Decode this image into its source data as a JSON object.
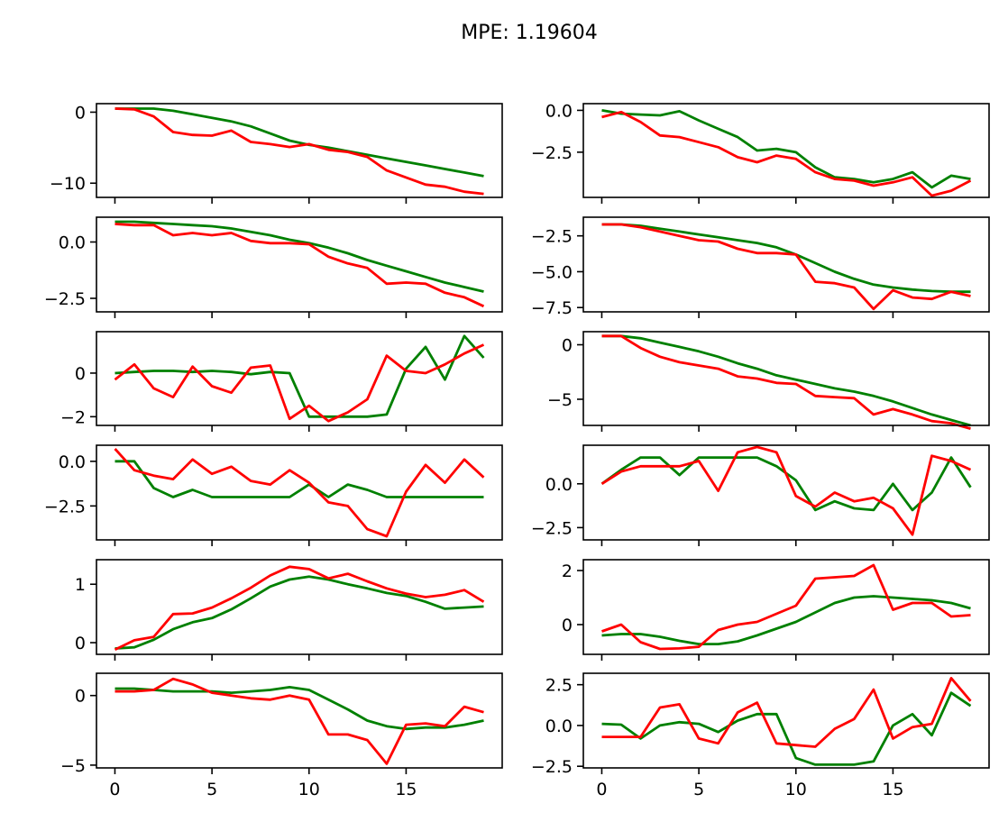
{
  "title": "MPE: 1.19604",
  "colors": {
    "series_green": "#008000",
    "series_red": "#ff0000",
    "axes": "#000000"
  },
  "chart_data": [
    {
      "type": "line",
      "subplot": "row 1, col 1",
      "x": [
        0,
        1,
        2,
        3,
        4,
        5,
        6,
        7,
        8,
        9,
        10,
        11,
        12,
        13,
        14,
        15,
        16,
        17,
        18,
        19
      ],
      "ylim": [
        -12,
        1.2
      ],
      "yticks": [
        0,
        -10
      ],
      "xticks": [
        0,
        5,
        10,
        15
      ],
      "series": [
        {
          "color": "green",
          "values": [
            0.5,
            0.5,
            0.5,
            0.2,
            -0.3,
            -0.8,
            -1.3,
            -2.0,
            -3.0,
            -4.0,
            -4.6,
            -5.0,
            -5.5,
            -6.0,
            -6.5,
            -7.0,
            -7.5,
            -8.0,
            -8.5,
            -9.0
          ]
        },
        {
          "color": "red",
          "values": [
            0.5,
            0.4,
            -0.6,
            -2.8,
            -3.2,
            -3.3,
            -2.6,
            -4.2,
            -4.5,
            -4.9,
            -4.5,
            -5.3,
            -5.6,
            -6.3,
            -8.2,
            -9.2,
            -10.2,
            -10.5,
            -11.2,
            -11.5
          ]
        }
      ]
    },
    {
      "type": "line",
      "subplot": "row 1, col 2",
      "x": [
        0,
        1,
        2,
        3,
        4,
        5,
        6,
        7,
        8,
        9,
        10,
        11,
        12,
        13,
        14,
        15,
        16,
        17,
        18,
        19
      ],
      "ylim": [
        -5.2,
        0.4
      ],
      "yticks": [
        0.0,
        -2.5
      ],
      "xticks": [
        0,
        5,
        10,
        15
      ],
      "series": [
        {
          "color": "green",
          "values": [
            0.0,
            -0.2,
            -0.25,
            -0.3,
            -0.05,
            -0.6,
            -1.1,
            -1.6,
            -2.4,
            -2.3,
            -2.5,
            -3.4,
            -4.0,
            -4.1,
            -4.3,
            -4.1,
            -3.7,
            -4.6,
            -3.9,
            -4.1
          ]
        },
        {
          "color": "red",
          "values": [
            -0.4,
            -0.1,
            -0.7,
            -1.5,
            -1.6,
            -1.9,
            -2.2,
            -2.8,
            -3.1,
            -2.7,
            -2.9,
            -3.7,
            -4.1,
            -4.2,
            -4.5,
            -4.3,
            -4.0,
            -5.1,
            -4.8,
            -4.2
          ]
        }
      ]
    },
    {
      "type": "line",
      "subplot": "row 2, col 1",
      "x": [
        0,
        1,
        2,
        3,
        4,
        5,
        6,
        7,
        8,
        9,
        10,
        11,
        12,
        13,
        14,
        15,
        16,
        17,
        18,
        19
      ],
      "ylim": [
        -3.1,
        1.1
      ],
      "yticks": [
        0.0,
        -2.5
      ],
      "xticks": [
        0,
        5,
        10,
        15
      ],
      "series": [
        {
          "color": "green",
          "values": [
            0.9,
            0.9,
            0.85,
            0.8,
            0.75,
            0.7,
            0.6,
            0.45,
            0.3,
            0.1,
            -0.05,
            -0.25,
            -0.5,
            -0.8,
            -1.05,
            -1.3,
            -1.55,
            -1.8,
            -2.0,
            -2.2
          ]
        },
        {
          "color": "red",
          "values": [
            0.8,
            0.75,
            0.75,
            0.3,
            0.4,
            0.3,
            0.4,
            0.05,
            -0.05,
            -0.05,
            -0.1,
            -0.65,
            -0.95,
            -1.15,
            -1.85,
            -1.8,
            -1.85,
            -2.25,
            -2.45,
            -2.85
          ]
        }
      ]
    },
    {
      "type": "line",
      "subplot": "row 2, col 2",
      "x": [
        0,
        1,
        2,
        3,
        4,
        5,
        6,
        7,
        8,
        9,
        10,
        11,
        12,
        13,
        14,
        15,
        16,
        17,
        18,
        19
      ],
      "ylim": [
        -7.8,
        -1.2
      ],
      "yticks": [
        -2.5,
        -5.0,
        -7.5
      ],
      "xticks": [
        0,
        5,
        10,
        15
      ],
      "series": [
        {
          "color": "green",
          "values": [
            -1.7,
            -1.7,
            -1.8,
            -2.0,
            -2.2,
            -2.4,
            -2.6,
            -2.8,
            -3.0,
            -3.3,
            -3.8,
            -4.4,
            -5.0,
            -5.5,
            -5.9,
            -6.1,
            -6.25,
            -6.35,
            -6.4,
            -6.4
          ]
        },
        {
          "color": "red",
          "values": [
            -1.7,
            -1.7,
            -1.9,
            -2.2,
            -2.5,
            -2.8,
            -2.9,
            -3.4,
            -3.7,
            -3.7,
            -3.8,
            -5.7,
            -5.8,
            -6.1,
            -7.6,
            -6.3,
            -6.8,
            -6.9,
            -6.4,
            -6.7
          ]
        }
      ]
    },
    {
      "type": "line",
      "subplot": "row 3, col 1",
      "x": [
        0,
        1,
        2,
        3,
        4,
        5,
        6,
        7,
        8,
        9,
        10,
        11,
        12,
        13,
        14,
        15,
        16,
        17,
        18,
        19
      ],
      "ylim": [
        -2.4,
        1.9
      ],
      "yticks": [
        0,
        -2
      ],
      "xticks": [
        0,
        5,
        10,
        15
      ],
      "series": [
        {
          "color": "green",
          "values": [
            0.0,
            0.05,
            0.1,
            0.1,
            0.05,
            0.1,
            0.05,
            -0.05,
            0.05,
            0.0,
            -2.0,
            -2.0,
            -2.0,
            -2.0,
            -1.9,
            0.2,
            1.2,
            -0.3,
            1.7,
            0.7
          ]
        },
        {
          "color": "red",
          "values": [
            -0.3,
            0.4,
            -0.7,
            -1.1,
            0.3,
            -0.6,
            -0.9,
            0.25,
            0.35,
            -2.1,
            -1.5,
            -2.2,
            -1.8,
            -1.2,
            0.8,
            0.1,
            0.0,
            0.4,
            0.9,
            1.3
          ]
        }
      ]
    },
    {
      "type": "line",
      "subplot": "row 3, col 2",
      "x": [
        0,
        1,
        2,
        3,
        4,
        5,
        6,
        7,
        8,
        9,
        10,
        11,
        12,
        13,
        14,
        15,
        16,
        17,
        18,
        19
      ],
      "ylim": [
        -7.4,
        1.2
      ],
      "yticks": [
        0,
        -5
      ],
      "xticks": [
        0,
        5,
        10,
        15
      ],
      "series": [
        {
          "color": "green",
          "values": [
            0.8,
            0.8,
            0.6,
            0.2,
            -0.2,
            -0.6,
            -1.1,
            -1.7,
            -2.2,
            -2.8,
            -3.2,
            -3.6,
            -4.0,
            -4.3,
            -4.7,
            -5.2,
            -5.8,
            -6.4,
            -6.9,
            -7.4
          ]
        },
        {
          "color": "red",
          "values": [
            0.8,
            0.8,
            -0.3,
            -1.1,
            -1.6,
            -1.9,
            -2.2,
            -2.9,
            -3.1,
            -3.5,
            -3.6,
            -4.7,
            -4.8,
            -4.9,
            -6.4,
            -5.9,
            -6.4,
            -7.0,
            -7.2,
            -7.7
          ]
        }
      ]
    },
    {
      "type": "line",
      "subplot": "row 4, col 1",
      "x": [
        0,
        1,
        2,
        3,
        4,
        5,
        6,
        7,
        8,
        9,
        10,
        11,
        12,
        13,
        14,
        15,
        16,
        17,
        18,
        19
      ],
      "ylim": [
        -4.4,
        0.9
      ],
      "yticks": [
        0.0,
        -2.5
      ],
      "xticks": [
        0,
        5,
        10,
        15
      ],
      "series": [
        {
          "color": "green",
          "values": [
            0.0,
            0.0,
            -1.5,
            -2.0,
            -1.6,
            -2.0,
            -2.0,
            -2.0,
            -2.0,
            -2.0,
            -1.3,
            -2.0,
            -1.3,
            -1.6,
            -2.0,
            -2.0,
            -2.0,
            -2.0,
            -2.0,
            -2.0
          ]
        },
        {
          "color": "red",
          "values": [
            0.7,
            -0.5,
            -0.8,
            -1.0,
            0.1,
            -0.7,
            -0.3,
            -1.1,
            -1.3,
            -0.5,
            -1.2,
            -2.3,
            -2.5,
            -3.8,
            -4.2,
            -1.7,
            -0.2,
            -1.2,
            0.1,
            -0.9
          ]
        }
      ]
    },
    {
      "type": "line",
      "subplot": "row 4, col 2",
      "x": [
        0,
        1,
        2,
        3,
        4,
        5,
        6,
        7,
        8,
        9,
        10,
        11,
        12,
        13,
        14,
        15,
        16,
        17,
        18,
        19
      ],
      "ylim": [
        -3.2,
        2.2
      ],
      "yticks": [
        0.0,
        -2.5
      ],
      "xticks": [
        0,
        5,
        10,
        15
      ],
      "series": [
        {
          "color": "green",
          "values": [
            0.0,
            0.8,
            1.5,
            1.5,
            0.5,
            1.5,
            1.5,
            1.5,
            1.5,
            1.0,
            0.2,
            -1.5,
            -1.0,
            -1.4,
            -1.5,
            0.0,
            -1.5,
            -0.5,
            1.5,
            -0.2
          ]
        },
        {
          "color": "red",
          "values": [
            0.0,
            0.7,
            1.0,
            1.0,
            1.0,
            1.3,
            -0.4,
            1.8,
            2.1,
            1.8,
            -0.7,
            -1.3,
            -0.5,
            -1.0,
            -0.8,
            -1.4,
            -2.9,
            1.6,
            1.3,
            0.8
          ]
        }
      ]
    },
    {
      "type": "line",
      "subplot": "row 5, col 1",
      "x": [
        0,
        1,
        2,
        3,
        4,
        5,
        6,
        7,
        8,
        9,
        10,
        11,
        12,
        13,
        14,
        15,
        16,
        17,
        18,
        19
      ],
      "ylim": [
        -0.2,
        1.42
      ],
      "yticks": [
        1,
        0
      ],
      "xticks": [
        0,
        5,
        10,
        15
      ],
      "series": [
        {
          "color": "green",
          "values": [
            -0.1,
            -0.08,
            0.05,
            0.23,
            0.35,
            0.42,
            0.57,
            0.76,
            0.96,
            1.08,
            1.13,
            1.08,
            1.0,
            0.93,
            0.85,
            0.8,
            0.7,
            0.58,
            0.6,
            0.62
          ]
        },
        {
          "color": "red",
          "values": [
            -0.12,
            0.04,
            0.1,
            0.49,
            0.5,
            0.6,
            0.76,
            0.94,
            1.15,
            1.3,
            1.26,
            1.1,
            1.18,
            1.05,
            0.93,
            0.84,
            0.78,
            0.82,
            0.9,
            0.7
          ]
        }
      ]
    },
    {
      "type": "line",
      "subplot": "row 5, col 2",
      "x": [
        0,
        1,
        2,
        3,
        4,
        5,
        6,
        7,
        8,
        9,
        10,
        11,
        12,
        13,
        14,
        15,
        16,
        17,
        18,
        19
      ],
      "ylim": [
        -1.1,
        2.4
      ],
      "yticks": [
        2,
        0
      ],
      "xticks": [
        0,
        5,
        10,
        15
      ],
      "series": [
        {
          "color": "green",
          "values": [
            -0.4,
            -0.35,
            -0.35,
            -0.45,
            -0.6,
            -0.72,
            -0.72,
            -0.62,
            -0.4,
            -0.15,
            0.1,
            0.45,
            0.8,
            1.0,
            1.05,
            1.0,
            0.95,
            0.9,
            0.8,
            0.6
          ]
        },
        {
          "color": "red",
          "values": [
            -0.25,
            0.0,
            -0.65,
            -0.9,
            -0.88,
            -0.82,
            -0.2,
            0.0,
            0.1,
            0.4,
            0.7,
            1.7,
            1.75,
            1.8,
            2.2,
            0.55,
            0.8,
            0.8,
            0.3,
            0.35
          ]
        }
      ]
    },
    {
      "type": "line",
      "subplot": "row 6, col 1",
      "x": [
        0,
        1,
        2,
        3,
        4,
        5,
        6,
        7,
        8,
        9,
        10,
        11,
        12,
        13,
        14,
        15,
        16,
        17,
        18,
        19
      ],
      "ylim": [
        -5.2,
        1.6
      ],
      "yticks": [
        0,
        -5
      ],
      "xticks": [
        0,
        5,
        10,
        15
      ],
      "series": [
        {
          "color": "green",
          "values": [
            0.5,
            0.5,
            0.4,
            0.3,
            0.3,
            0.3,
            0.2,
            0.3,
            0.4,
            0.6,
            0.4,
            -0.3,
            -1.0,
            -1.8,
            -2.2,
            -2.4,
            -2.3,
            -2.3,
            -2.1,
            -1.8
          ]
        },
        {
          "color": "red",
          "values": [
            0.3,
            0.3,
            0.4,
            1.2,
            0.8,
            0.2,
            0.0,
            -0.2,
            -0.3,
            0.0,
            -0.3,
            -2.8,
            -2.8,
            -3.2,
            -4.9,
            -2.1,
            -2.0,
            -2.2,
            -0.8,
            -1.2
          ]
        }
      ]
    },
    {
      "type": "line",
      "subplot": "row 6, col 2",
      "x": [
        0,
        1,
        2,
        3,
        4,
        5,
        6,
        7,
        8,
        9,
        10,
        11,
        12,
        13,
        14,
        15,
        16,
        17,
        18,
        19
      ],
      "ylim": [
        -2.6,
        3.2
      ],
      "yticks": [
        2.5,
        0.0,
        -2.5
      ],
      "xticks": [
        0,
        5,
        10,
        15
      ],
      "series": [
        {
          "color": "green",
          "values": [
            0.1,
            0.05,
            -0.8,
            0.0,
            0.2,
            0.1,
            -0.4,
            0.3,
            0.7,
            0.7,
            -2.0,
            -2.4,
            -2.4,
            -2.4,
            -2.2,
            0.0,
            0.7,
            -0.6,
            2.0,
            1.2
          ]
        },
        {
          "color": "red",
          "values": [
            -0.7,
            -0.7,
            -0.7,
            1.1,
            1.3,
            -0.8,
            -1.1,
            0.8,
            1.4,
            -1.1,
            -1.2,
            -1.3,
            -0.2,
            0.4,
            2.2,
            -0.8,
            -0.1,
            0.1,
            2.9,
            1.5
          ]
        }
      ]
    }
  ]
}
